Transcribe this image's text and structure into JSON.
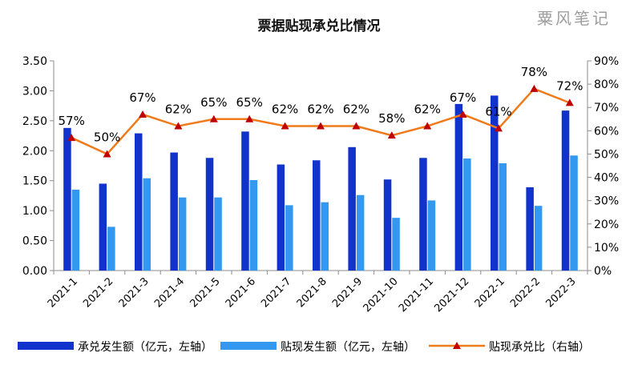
{
  "chart_data": {
    "type": "bar",
    "title": "票据贴现承兑比情况",
    "watermark": "粟风笔记",
    "categories": [
      "2021-1",
      "2021-2",
      "2021-3",
      "2021-4",
      "2021-5",
      "2021-6",
      "2021-7",
      "2021-8",
      "2021-9",
      "2021-10",
      "2021-11",
      "2021-12",
      "2022-1",
      "2022-2",
      "2022-3"
    ],
    "series": [
      {
        "name": "承兑发生额（亿元，左轴）",
        "type": "bar",
        "axis": "left",
        "color": "#1133cc",
        "values": [
          2.38,
          1.45,
          2.29,
          1.97,
          1.88,
          2.32,
          1.77,
          1.84,
          2.06,
          1.52,
          1.88,
          2.78,
          2.92,
          1.39,
          2.67
        ]
      },
      {
        "name": "贴现发生额（亿元，左轴）",
        "type": "bar",
        "axis": "left",
        "color": "#3399f0",
        "values": [
          1.35,
          0.73,
          1.54,
          1.22,
          1.22,
          1.51,
          1.09,
          1.14,
          1.26,
          0.88,
          1.17,
          1.87,
          1.79,
          1.08,
          1.92
        ]
      },
      {
        "name": "贴现承兑比（右轴）",
        "type": "line",
        "axis": "right",
        "color": "#f07a1a",
        "marker_color": "#c00000",
        "values": [
          57,
          50,
          67,
          62,
          65,
          65,
          62,
          62,
          62,
          58,
          62,
          67,
          61,
          78,
          72
        ],
        "labels": [
          "57%",
          "50%",
          "67%",
          "62%",
          "65%",
          "65%",
          "62%",
          "62%",
          "62%",
          "58%",
          "62%",
          "67%",
          "61%",
          "78%",
          "72%"
        ]
      }
    ],
    "yleft": {
      "ylim": [
        0,
        3.5
      ],
      "ticks": [
        "0.00",
        "0.50",
        "1.00",
        "1.50",
        "2.00",
        "2.50",
        "3.00",
        "3.50"
      ]
    },
    "yright": {
      "ylim": [
        0,
        90
      ],
      "ticks": [
        "0%",
        "10%",
        "20%",
        "30%",
        "40%",
        "50%",
        "60%",
        "70%",
        "80%",
        "90%"
      ]
    },
    "grid": false,
    "legend": "bottom"
  }
}
